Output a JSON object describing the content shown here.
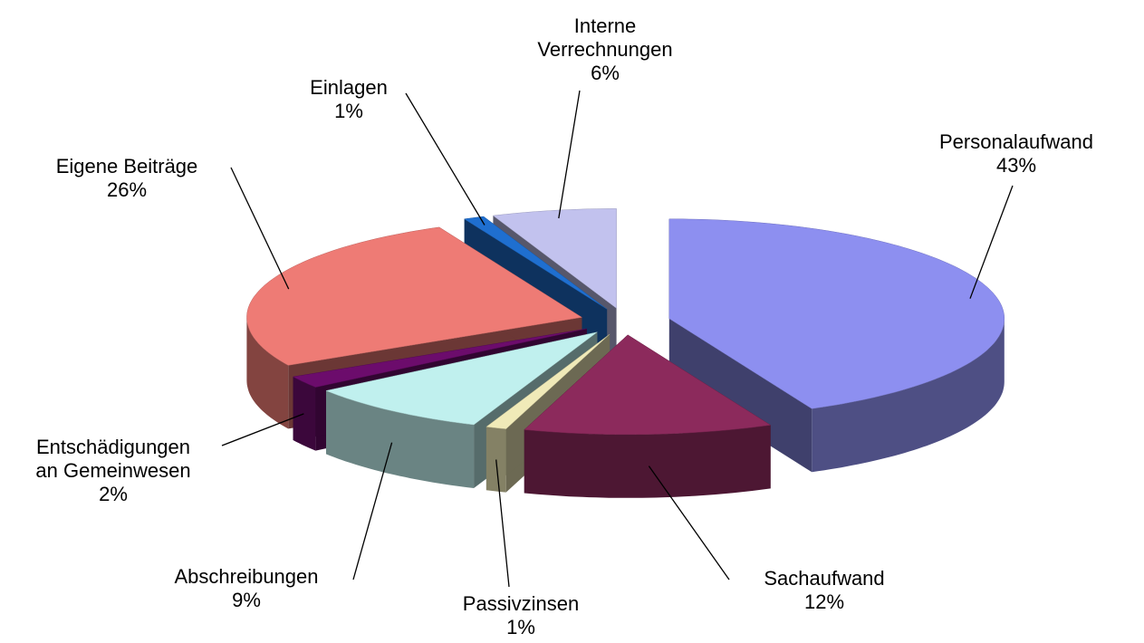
{
  "chart_data": {
    "type": "pie3d",
    "categories": [
      "Personalaufwand",
      "Sachaufwand",
      "Passivzinsen",
      "Abschreibungen",
      "Entschädigungen an Gemeinwesen",
      "Eigene Beiträge",
      "Einlagen",
      "Interne Verrechnungen"
    ],
    "values": [
      43,
      12,
      1,
      9,
      2,
      26,
      1,
      6
    ],
    "value_labels": [
      "43%",
      "12%",
      "1%",
      "9%",
      "2%",
      "26%",
      "1%",
      "6%"
    ],
    "colors": [
      "#8d8ff0",
      "#8c2a5c",
      "#f0eab8",
      "#c0f0ee",
      "#6c0c6c",
      "#ee7b75",
      "#1f6fd0",
      "#c2c2ee"
    ]
  }
}
